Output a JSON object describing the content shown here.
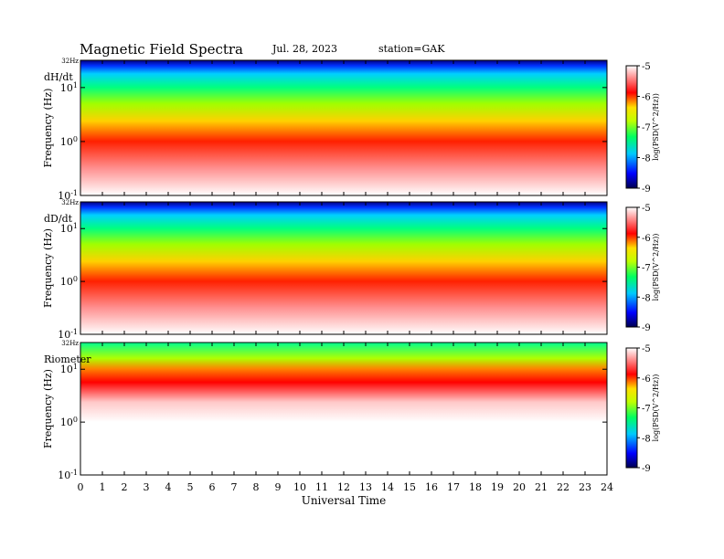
{
  "header": {
    "title": "Magnetic Field Spectra",
    "date": "Jul. 28, 2023",
    "station": "station=GAK"
  },
  "chart_data": [
    {
      "type": "heatmap",
      "panel_label": "dH/dt",
      "ylabel": "Frequency (Hz)",
      "yscale": "log",
      "ylim": [
        0.1,
        32
      ],
      "yticks": [
        "10^-1",
        "10^0",
        "10^1"
      ],
      "ytop_label": "32Hz",
      "xlim": [
        0,
        24
      ],
      "colorbar": {
        "label": "log(PSD(V^2/Hz))",
        "range": [
          -9,
          -5
        ],
        "ticks": [
          "-5",
          "-6",
          "-7",
          "-8",
          "-9"
        ]
      }
    },
    {
      "type": "heatmap",
      "panel_label": "dD/dt",
      "ylabel": "Frequency (Hz)",
      "yscale": "log",
      "ylim": [
        0.1,
        32
      ],
      "yticks": [
        "10^-1",
        "10^0",
        "10^1"
      ],
      "ytop_label": "32Hz",
      "xlim": [
        0,
        24
      ],
      "colorbar": {
        "label": "log(PSD(V^2/Hz))",
        "range": [
          -9,
          -5
        ],
        "ticks": [
          "-5",
          "-6",
          "-7",
          "-8",
          "-9"
        ]
      }
    },
    {
      "type": "heatmap",
      "panel_label": "Riometer",
      "ylabel": "Frequency (Hz)",
      "yscale": "log",
      "ylim": [
        0.1,
        32
      ],
      "yticks": [
        "10^-1",
        "10^0",
        "10^1"
      ],
      "ytop_label": "32Hz",
      "xlim": [
        0,
        24
      ],
      "xlabel": "Universal Time",
      "xticks": [
        "0",
        "1",
        "2",
        "3",
        "4",
        "5",
        "6",
        "7",
        "8",
        "9",
        "10",
        "11",
        "12",
        "13",
        "14",
        "15",
        "16",
        "17",
        "18",
        "19",
        "20",
        "21",
        "22",
        "23",
        "24"
      ],
      "colorbar": {
        "label": "log(PSD(V^2/Hz))",
        "range": [
          -9,
          -5
        ],
        "ticks": [
          "-5",
          "-6",
          "-7",
          "-8",
          "-9"
        ]
      }
    }
  ]
}
